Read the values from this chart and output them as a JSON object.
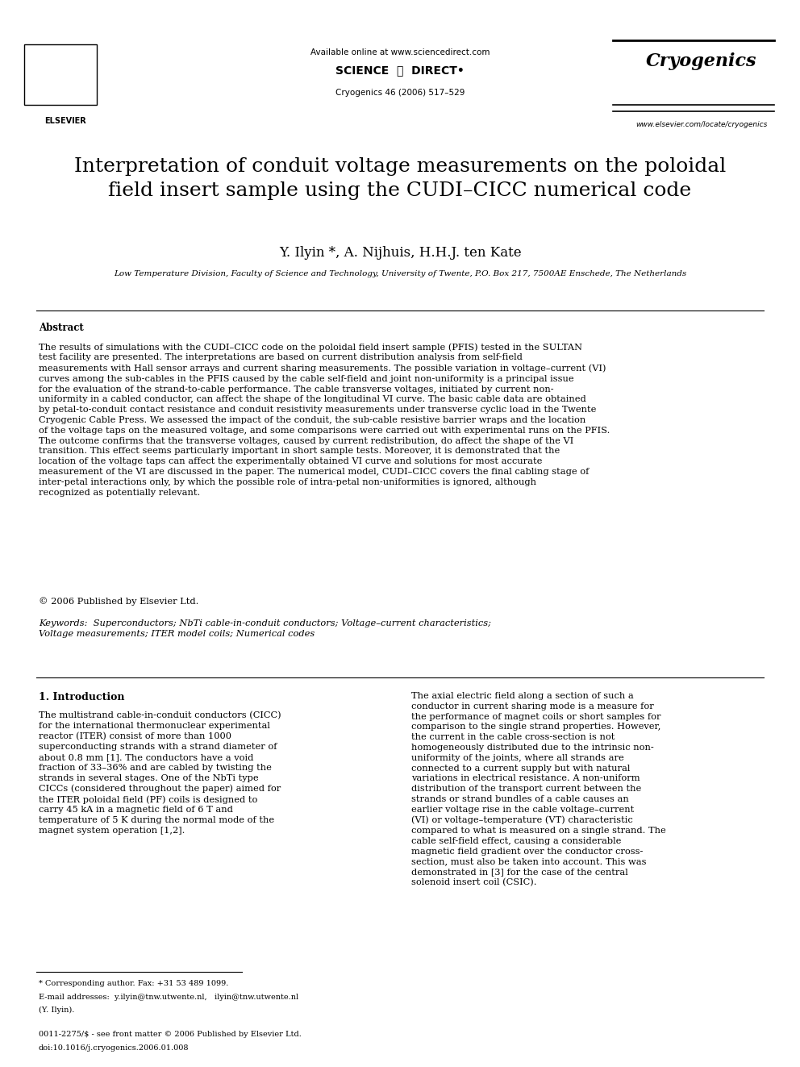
{
  "bg_color": "#ffffff",
  "header": {
    "available_online": "Available online at www.sciencedirect.com",
    "journal_name": "Cryogenics 46 (2006) 517–529",
    "website": "www.elsevier.com/locate/cryogenics"
  },
  "title": "Interpretation of conduit voltage measurements on the poloidal\nfield insert sample using the CUDI–CICC numerical code",
  "authors": "Y. Ilyin *, A. Nijhuis, H.H.J. ten Kate",
  "affiliation": "Low Temperature Division, Faculty of Science and Technology, University of Twente, P.O. Box 217, 7500AE Enschede, The Netherlands",
  "abstract_label": "Abstract",
  "abstract_text": "The results of simulations with the CUDI–CICC code on the poloidal field insert sample (PFIS) tested in the SULTAN test facility are presented. The interpretations are based on current distribution analysis from self-field measurements with Hall sensor arrays and current sharing measurements. The possible variation in voltage–current (VI) curves among the sub-cables in the PFIS caused by the cable self-field and joint non-uniformity is a principal issue for the evaluation of the strand-to-cable performance. The cable transverse voltages, initiated by current non-uniformity in a cabled conductor, can affect the shape of the longitudinal VI curve. The basic cable data are obtained by petal-to-conduit contact resistance and conduit resistivity measurements under transverse cyclic load in the Twente Cryogenic Cable Press. We assessed the impact of the conduit, the sub-cable resistive barrier wraps and the location of the voltage taps on the measured voltage, and some comparisons were carried out with experimental runs on the PFIS. The outcome confirms that the transverse voltages, caused by current redistribution, do affect the shape of the VI transition. This effect seems particularly important in short sample tests. Moreover, it is demonstrated that the location of the voltage taps can affect the experimentally obtained VI curve and solutions for most accurate measurement of the VI are discussed in the paper. The numerical model, CUDI–CICC covers the final cabling stage of inter-petal interactions only, by which the possible role of intra-petal non-uniformities is ignored, although recognized as potentially relevant.",
  "copyright": "© 2006 Published by Elsevier Ltd.",
  "keywords_label": "Keywords:",
  "keywords_text": "Superconductors; NbTi cable-in-conduit conductors; Voltage–current characteristics; Voltage measurements; ITER model coils; Numerical codes",
  "section1_title": "1. Introduction",
  "section1_left": "The multistrand cable-in-conduit conductors (CICC) for the international thermonuclear experimental reactor (ITER) consist of more than 1000 superconducting strands with a strand diameter of about 0.8 mm [1]. The conductors have a void fraction of 33–36% and are cabled by twisting the strands in several stages. One of the NbTi type CICCs (considered throughout the paper) aimed for the ITER poloidal field (PF) coils is designed to carry 45 kA in a magnetic field of 6 T and temperature of 5 K during the normal mode of the magnet system operation [1,2].",
  "section1_right": "The axial electric field along a section of such a conductor in current sharing mode is a measure for the performance of magnet coils or short samples for comparison to the single strand properties. However, the current in the cable cross-section is not homogeneously distributed due to the intrinsic non-uniformity of the joints, where all strands are connected to a current supply but with natural variations in electrical resistance. A non-uniform distribution of the transport current between the strands or strand bundles of a cable causes an earlier voltage rise in the cable voltage–current (VI) or voltage–temperature (VT) characteristic compared to what is measured on a single strand. The cable self-field effect, causing a considerable magnetic field gradient over the conductor cross-section, must also be taken into account. This was demonstrated in [3] for the case of the central solenoid insert coil (CSIC).",
  "footnote_asterisk": "* Corresponding author. Fax: +31 53 489 1099.",
  "footnote_email": "E-mail addresses:  y.ilyin@tnw.utwente.nl,   ilyin@tnw.utwente.nl",
  "footnote_name": "(Y. Ilyin).",
  "footnote_issn": "0011-2275/$ - see front matter © 2006 Published by Elsevier Ltd.",
  "footnote_doi": "doi:10.1016/j.cryogenics.2006.01.008"
}
